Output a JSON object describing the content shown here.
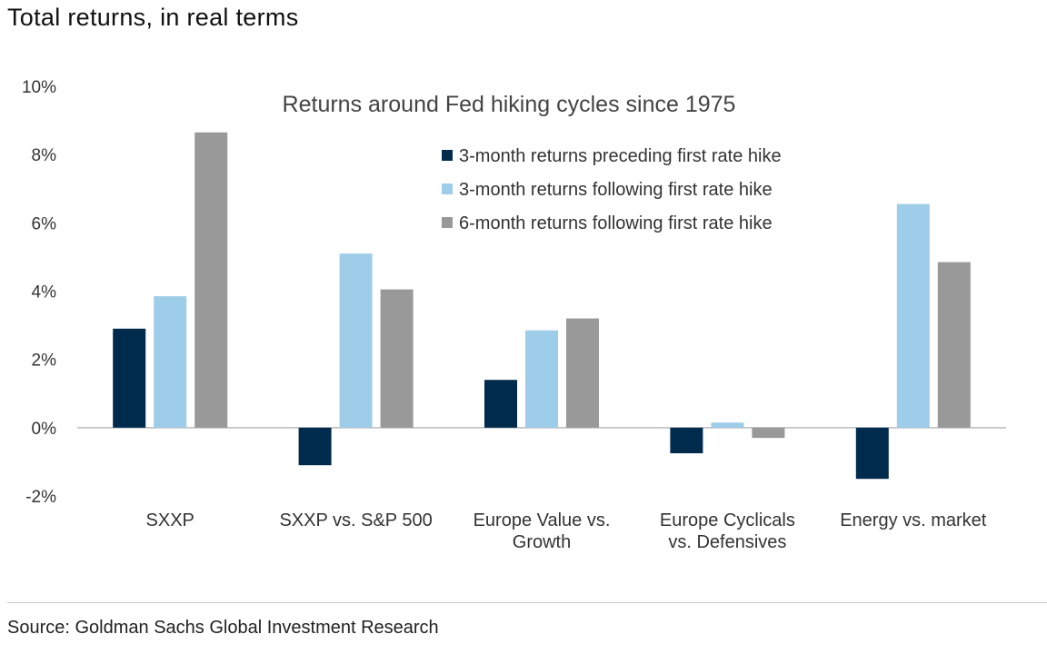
{
  "subtitle": "Total returns, in real terms",
  "source": "Source: Goldman Sachs Global Investment Research",
  "chart_data": {
    "type": "bar",
    "title": "Returns around Fed hiking cycles since 1975",
    "categories": [
      [
        "SXXP"
      ],
      [
        "SXXP vs. S&P 500"
      ],
      [
        "Europe Value vs.",
        "Growth"
      ],
      [
        "Europe Cyclicals",
        "vs. Defensives"
      ],
      [
        "Energy vs. market"
      ]
    ],
    "series": [
      {
        "name": "3-month returns preceding first rate hike",
        "color": "#002b4d",
        "values": [
          2.9,
          -1.1,
          1.4,
          -0.75,
          -1.5
        ]
      },
      {
        "name": "3-month returns following first rate hike",
        "color": "#9ecde9",
        "values": [
          3.85,
          5.1,
          2.85,
          0.15,
          6.55
        ]
      },
      {
        "name": "6-month returns following first rate hike",
        "color": "#999999",
        "values": [
          8.65,
          4.05,
          3.2,
          -0.3,
          4.85
        ]
      }
    ],
    "ylim": [
      -2,
      10
    ],
    "yticks": [
      -2,
      0,
      2,
      4,
      6,
      8,
      10
    ],
    "ytick_labels": [
      "-2%",
      "0%",
      "2%",
      "4%",
      "6%",
      "8%",
      "10%"
    ],
    "xlabel": "",
    "ylabel": "",
    "grid": false,
    "legend_position": "top-center"
  }
}
